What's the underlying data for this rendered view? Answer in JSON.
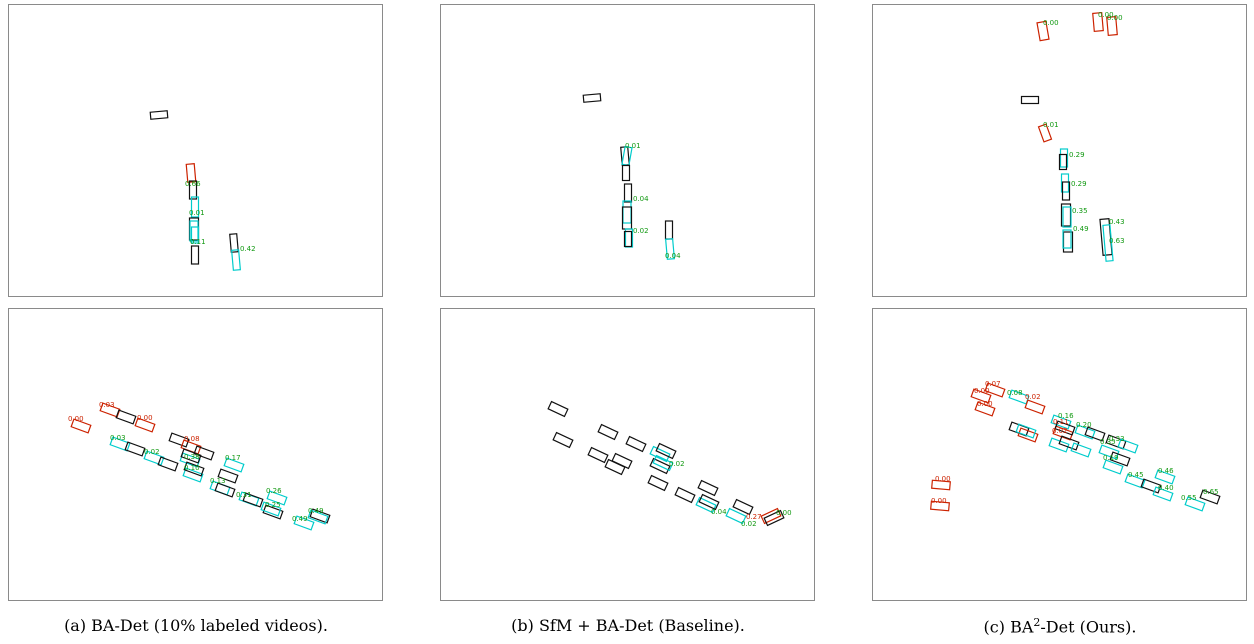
{
  "colors": {
    "gt": "#111111",
    "pred": "#00cccc",
    "false_pos": "#cc2200",
    "label": "#119911",
    "label_fp": "#cc2200",
    "frame": "#8a8a8a"
  },
  "captions": [
    {
      "prefix": "(a) BA-Det (10% labeled videos).",
      "sup": "",
      "suffix": ""
    },
    {
      "prefix": "(b) SfM + BA-Det (Baseline).",
      "sup": "",
      "suffix": ""
    },
    {
      "prefix": "(c) BA",
      "sup": "2",
      "suffix": "-Det (Ours)."
    }
  ],
  "panels": [
    {
      "id": "a-top",
      "labels": [
        {
          "text": "0.66",
          "tag": "green"
        },
        {
          "text": "0.01",
          "tag": "green"
        },
        {
          "text": "0.11",
          "tag": "green"
        },
        {
          "text": "0.42",
          "tag": "green"
        }
      ]
    },
    {
      "id": "b-top",
      "labels": [
        {
          "text": "0.01",
          "tag": "green"
        },
        {
          "text": "0.04",
          "tag": "green"
        },
        {
          "text": "0.02",
          "tag": "green"
        },
        {
          "text": "0.04",
          "tag": "green"
        }
      ]
    },
    {
      "id": "c-top",
      "labels": [
        {
          "text": "0.00",
          "tag": "green"
        },
        {
          "text": "0.00",
          "tag": "green"
        },
        {
          "text": "0.00",
          "tag": "green"
        },
        {
          "text": "0.01",
          "tag": "green"
        },
        {
          "text": "0.29",
          "tag": "green"
        },
        {
          "text": "0.29",
          "tag": "green"
        },
        {
          "text": "0.35",
          "tag": "green"
        },
        {
          "text": "0.49",
          "tag": "green"
        },
        {
          "text": "0.43",
          "tag": "green"
        },
        {
          "text": "0.63",
          "tag": "green"
        }
      ]
    },
    {
      "id": "a-bottom",
      "labels": [
        {
          "text": "0.00",
          "tag": "red"
        },
        {
          "text": "0.03",
          "tag": "red"
        },
        {
          "text": "0.00",
          "tag": "red"
        },
        {
          "text": "0.03",
          "tag": "green"
        },
        {
          "text": "0.02",
          "tag": "green"
        },
        {
          "text": "0.08",
          "tag": "red"
        },
        {
          "text": "0.38",
          "tag": "green"
        },
        {
          "text": "0.10",
          "tag": "green"
        },
        {
          "text": "0.17",
          "tag": "green"
        },
        {
          "text": "0.13",
          "tag": "green"
        },
        {
          "text": "0.31",
          "tag": "green"
        },
        {
          "text": "0.26",
          "tag": "green"
        },
        {
          "text": "0.25",
          "tag": "green"
        },
        {
          "text": "0.49",
          "tag": "green"
        },
        {
          "text": "0.49",
          "tag": "green"
        }
      ]
    },
    {
      "id": "b-bottom",
      "labels": [
        {
          "text": "0.02",
          "tag": "green"
        },
        {
          "text": "0.04",
          "tag": "green"
        },
        {
          "text": "0.02",
          "tag": "green"
        },
        {
          "text": "0.00",
          "tag": "green"
        },
        {
          "text": "0.27",
          "tag": "red"
        }
      ]
    },
    {
      "id": "c-bottom",
      "labels": [
        {
          "text": "0.07",
          "tag": "red"
        },
        {
          "text": "0.00",
          "tag": "red"
        },
        {
          "text": "0.00",
          "tag": "red"
        },
        {
          "text": "0.08",
          "tag": "green"
        },
        {
          "text": "0.02",
          "tag": "red"
        },
        {
          "text": "0.11",
          "tag": "red"
        },
        {
          "text": "0.02",
          "tag": "red"
        },
        {
          "text": "0.16",
          "tag": "green"
        },
        {
          "text": "0.20",
          "tag": "green"
        },
        {
          "text": "0.33",
          "tag": "green"
        },
        {
          "text": "0.35",
          "tag": "green"
        },
        {
          "text": "0.19",
          "tag": "green"
        },
        {
          "text": "0.45",
          "tag": "green"
        },
        {
          "text": "0.46",
          "tag": "green"
        },
        {
          "text": "0.40",
          "tag": "green"
        },
        {
          "text": "0.55",
          "tag": "green"
        },
        {
          "text": "0.65",
          "tag": "green"
        },
        {
          "text": "0.00",
          "tag": "red"
        },
        {
          "text": "0.00",
          "tag": "red"
        }
      ]
    }
  ]
}
